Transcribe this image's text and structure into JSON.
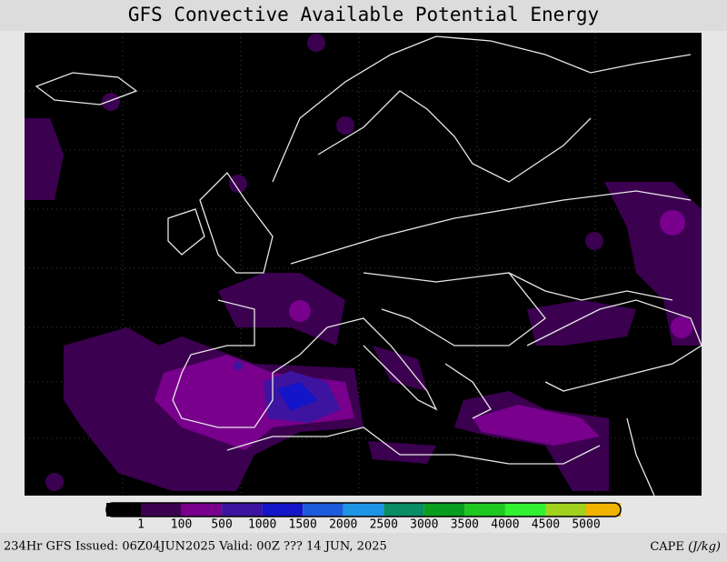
{
  "header": {
    "title": "GFS Convective Available Potential Energy"
  },
  "colorbar": {
    "labels": [
      1,
      100,
      500,
      1000,
      1500,
      2000,
      2500,
      3000,
      3500,
      4000,
      4500,
      5000
    ],
    "colors": [
      "#000000",
      "#3c0050",
      "#78008c",
      "#3c14a0",
      "#1414c8",
      "#1e5adc",
      "#1e96e6",
      "#0a8c64",
      "#0a9e1e",
      "#1ec81e",
      "#32f032",
      "#a0d21e",
      "#f0b400"
    ]
  },
  "footer": {
    "issued": "234Hr GFS Issued: 06Z04JUN2025 Valid: 00Z ??? 14 JUN, 2025",
    "field": "CAPE",
    "units": "(J/kg)"
  }
}
